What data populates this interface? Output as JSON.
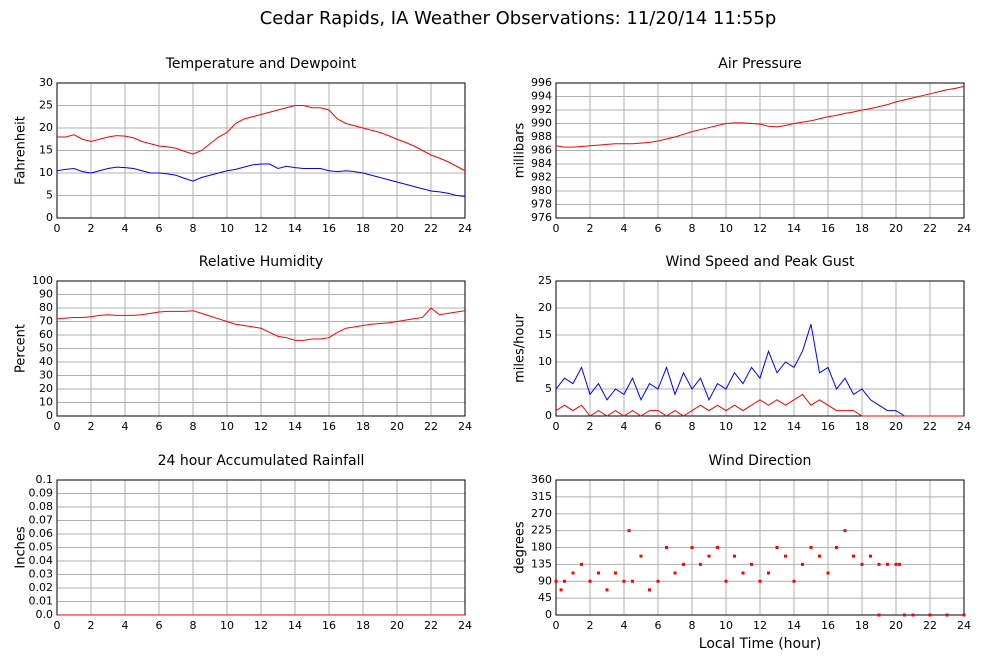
{
  "title": "Cedar Rapids, IA Weather Observations: 11/20/14 11:55p",
  "chart_data": [
    {
      "type": "line",
      "title": "Temperature and Dewpoint",
      "ylabel": "Fahrenheit",
      "xlim": [
        0,
        24
      ],
      "xticks": [
        0,
        2,
        4,
        6,
        8,
        10,
        12,
        14,
        16,
        18,
        20,
        22,
        24
      ],
      "ylim": [
        0,
        30
      ],
      "yticks": [
        0,
        5,
        10,
        15,
        20,
        25,
        30
      ],
      "grid": true,
      "x": [
        0,
        0.5,
        1,
        1.5,
        2,
        2.5,
        3,
        3.5,
        4,
        4.5,
        5,
        5.5,
        6,
        6.5,
        7,
        7.5,
        8,
        8.5,
        9,
        9.5,
        10,
        10.5,
        11,
        11.5,
        12,
        12.5,
        13,
        13.5,
        14,
        14.5,
        15,
        15.5,
        16,
        16.5,
        17,
        17.5,
        18,
        18.5,
        19,
        19.5,
        20,
        20.5,
        21,
        21.5,
        22,
        22.5,
        23,
        23.5,
        24
      ],
      "series": [
        {
          "color": "#ff0000",
          "values": [
            18,
            18,
            18.5,
            17.5,
            17,
            17.5,
            18,
            18.3,
            18.2,
            17.8,
            17,
            16.5,
            16,
            15.8,
            15.5,
            14.8,
            14.2,
            15,
            16.5,
            18,
            19,
            21,
            22,
            22.5,
            23,
            23.5,
            24,
            24.5,
            25,
            25,
            24.5,
            24.5,
            24,
            22,
            21,
            20.5,
            20,
            19.5,
            19,
            18.3,
            17.5,
            16.8,
            16,
            15,
            14,
            13.3,
            12.5,
            11.5,
            10.5
          ]
        },
        {
          "color": "#0000ff",
          "values": [
            10.5,
            10.8,
            11,
            10.3,
            10,
            10.5,
            11,
            11.3,
            11.2,
            11,
            10.5,
            10,
            10,
            9.8,
            9.5,
            8.8,
            8.2,
            9,
            9.5,
            10,
            10.5,
            10.8,
            11.3,
            11.8,
            12,
            12,
            11,
            11.5,
            11.2,
            11,
            11,
            11,
            10.5,
            10.3,
            10.5,
            10.3,
            10,
            9.5,
            9,
            8.5,
            8,
            7.5,
            7,
            6.5,
            6,
            5.8,
            5.5,
            5,
            4.8
          ]
        }
      ]
    },
    {
      "type": "line",
      "title": "Air Pressure",
      "ylabel": "millibars",
      "xlim": [
        0,
        24
      ],
      "xticks": [
        0,
        2,
        4,
        6,
        8,
        10,
        12,
        14,
        16,
        18,
        20,
        22,
        24
      ],
      "ylim": [
        976,
        996
      ],
      "yticks": [
        976,
        978,
        980,
        982,
        984,
        986,
        988,
        990,
        992,
        994,
        996
      ],
      "grid": true,
      "x": [
        0,
        0.5,
        1,
        1.5,
        2,
        2.5,
        3,
        3.5,
        4,
        4.5,
        5,
        5.5,
        6,
        6.5,
        7,
        7.5,
        8,
        8.5,
        9,
        9.5,
        10,
        10.5,
        11,
        11.5,
        12,
        12.5,
        13,
        13.5,
        14,
        14.5,
        15,
        15.5,
        16,
        16.5,
        17,
        17.5,
        18,
        18.5,
        19,
        19.5,
        20,
        20.5,
        21,
        21.5,
        22,
        22.5,
        23,
        23.5,
        24
      ],
      "series": [
        {
          "color": "#ff0000",
          "values": [
            986.7,
            986.5,
            986.5,
            986.6,
            986.7,
            986.8,
            986.9,
            987,
            987,
            987,
            987.1,
            987.2,
            987.4,
            987.7,
            988,
            988.4,
            988.8,
            989.1,
            989.4,
            989.7,
            990,
            990.1,
            990.1,
            990,
            989.9,
            989.6,
            989.5,
            989.7,
            990,
            990.2,
            990.4,
            990.7,
            991,
            991.2,
            991.5,
            991.7,
            992,
            992.2,
            992.5,
            992.8,
            993.2,
            993.5,
            993.8,
            994.1,
            994.4,
            994.7,
            995,
            995.2,
            995.5
          ]
        }
      ]
    },
    {
      "type": "line",
      "title": "Relative Humidity",
      "ylabel": "Percent",
      "xlim": [
        0,
        24
      ],
      "xticks": [
        0,
        2,
        4,
        6,
        8,
        10,
        12,
        14,
        16,
        18,
        20,
        22,
        24
      ],
      "ylim": [
        0,
        100
      ],
      "yticks": [
        0,
        10,
        20,
        30,
        40,
        50,
        60,
        70,
        80,
        90,
        100
      ],
      "grid": true,
      "x": [
        0,
        0.5,
        1,
        1.5,
        2,
        2.5,
        3,
        3.5,
        4,
        4.5,
        5,
        5.5,
        6,
        6.5,
        7,
        7.5,
        8,
        8.5,
        9,
        9.5,
        10,
        10.5,
        11,
        11.5,
        12,
        12.5,
        13,
        13.5,
        14,
        14.5,
        15,
        15.5,
        16,
        16.5,
        17,
        17.5,
        18,
        18.5,
        19,
        19.5,
        20,
        20.5,
        21,
        21.5,
        22,
        22.5,
        23,
        23.5,
        24
      ],
      "series": [
        {
          "color": "#ff0000",
          "values": [
            72,
            72.5,
            73,
            73,
            73.5,
            74.5,
            75,
            74.5,
            74.5,
            74.5,
            75,
            76,
            77,
            77.5,
            77.5,
            77.5,
            78,
            76,
            74,
            72,
            70,
            68,
            67,
            66,
            65,
            62,
            59,
            58,
            56,
            56,
            57,
            57,
            58,
            62,
            65,
            66,
            67,
            68,
            68.5,
            69,
            70,
            71,
            72,
            73,
            80,
            75,
            76,
            77,
            78
          ]
        }
      ]
    },
    {
      "type": "line",
      "title": "Wind Speed and Peak Gust",
      "ylabel": "miles/hour",
      "xlim": [
        0,
        24
      ],
      "xticks": [
        0,
        2,
        4,
        6,
        8,
        10,
        12,
        14,
        16,
        18,
        20,
        22,
        24
      ],
      "ylim": [
        0,
        25
      ],
      "yticks": [
        0,
        5,
        10,
        15,
        20,
        25
      ],
      "grid": true,
      "x": [
        0,
        0.5,
        1,
        1.5,
        2,
        2.5,
        3,
        3.5,
        4,
        4.5,
        5,
        5.5,
        6,
        6.5,
        7,
        7.5,
        8,
        8.5,
        9,
        9.5,
        10,
        10.5,
        11,
        11.5,
        12,
        12.5,
        13,
        13.5,
        14,
        14.5,
        15,
        15.5,
        16,
        16.5,
        17,
        17.5,
        18,
        18.5,
        19,
        19.5,
        20,
        20.5,
        21,
        21.5,
        22,
        22.5,
        23,
        23.5,
        24
      ],
      "series": [
        {
          "color": "#0000ff",
          "values": [
            5,
            7,
            6,
            9,
            4,
            6,
            3,
            5,
            4,
            7,
            3,
            6,
            5,
            9,
            4,
            8,
            5,
            7,
            3,
            6,
            5,
            8,
            6,
            9,
            7,
            12,
            8,
            10,
            9,
            12,
            17,
            8,
            9,
            5,
            7,
            4,
            5,
            3,
            2,
            1,
            1,
            0,
            0,
            0,
            0,
            0,
            0,
            0,
            0
          ]
        },
        {
          "color": "#ff0000",
          "values": [
            1,
            2,
            1,
            2,
            0,
            1,
            0,
            1,
            0,
            1,
            0,
            1,
            1,
            0,
            1,
            0,
            1,
            2,
            1,
            2,
            1,
            2,
            1,
            2,
            3,
            2,
            3,
            2,
            3,
            4,
            2,
            3,
            2,
            1,
            1,
            1,
            0,
            0,
            0,
            0,
            0,
            0,
            0,
            0,
            0,
            0,
            0,
            0,
            0
          ]
        }
      ]
    },
    {
      "type": "line",
      "title": "24 hour Accumulated Rainfall",
      "ylabel": "Inches",
      "xlim": [
        0,
        24
      ],
      "xticks": [
        0,
        2,
        4,
        6,
        8,
        10,
        12,
        14,
        16,
        18,
        20,
        22,
        24
      ],
      "ylim": [
        0,
        0.1
      ],
      "yticks": [
        {
          "value": 0,
          "label": "0.0"
        },
        0.01,
        0.02,
        0.03,
        0.04,
        0.05,
        0.06,
        0.07,
        0.08,
        0.09,
        0.1
      ],
      "grid": true,
      "x": [
        0,
        24
      ],
      "series": [
        {
          "color": "#ff0000",
          "values": [
            0,
            0
          ]
        }
      ]
    },
    {
      "type": "scatter",
      "title": "Wind Direction",
      "ylabel": "degrees",
      "xlabel": "Local Time (hour)",
      "xlim": [
        0,
        24
      ],
      "xticks": [
        0,
        2,
        4,
        6,
        8,
        10,
        12,
        14,
        16,
        18,
        20,
        22,
        24
      ],
      "ylim": [
        0,
        360
      ],
      "yticks": [
        0,
        45,
        90,
        135,
        180,
        225,
        270,
        315,
        360
      ],
      "grid": true,
      "x": [
        0,
        0.3,
        0.5,
        1,
        1.5,
        2,
        2.5,
        3,
        3.5,
        4,
        4.3,
        4.5,
        5,
        5.5,
        6,
        6.5,
        7,
        7.5,
        8,
        8.5,
        9,
        9.5,
        10,
        10.5,
        11,
        11.5,
        12,
        12.5,
        13,
        13.5,
        14,
        14.5,
        15,
        15.5,
        16,
        16.5,
        17,
        17.5,
        18,
        18.5,
        19,
        19.5,
        20,
        20.2,
        19,
        20.5,
        21,
        22,
        23,
        24
      ],
      "series": [
        {
          "color": "#ff0000",
          "values": [
            90,
            67,
            90,
            112,
            135,
            90,
            112,
            67,
            112,
            90,
            225,
            90,
            157,
            67,
            90,
            180,
            112,
            135,
            180,
            135,
            157,
            180,
            90,
            157,
            112,
            135,
            90,
            112,
            180,
            157,
            90,
            135,
            180,
            157,
            112,
            180,
            225,
            157,
            135,
            157,
            135,
            135,
            135,
            135,
            0,
            0,
            0,
            0,
            0,
            0
          ]
        }
      ]
    }
  ]
}
